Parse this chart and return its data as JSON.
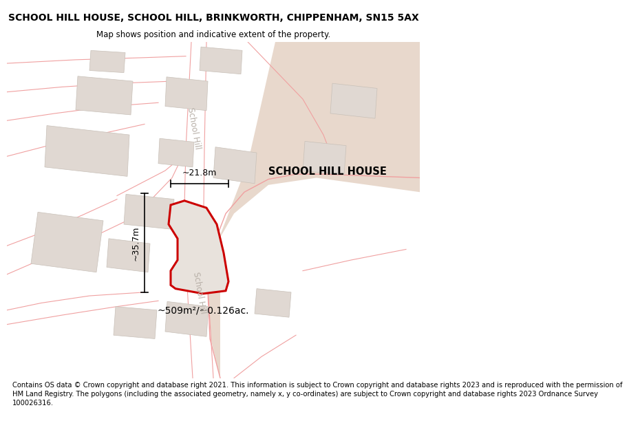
{
  "title": "SCHOOL HILL HOUSE, SCHOOL HILL, BRINKWORTH, CHIPPENHAM, SN15 5AX",
  "subtitle": "Map shows position and indicative extent of the property.",
  "footer_lines": [
    "Contains OS data © Crown copyright and database right 2021. This information is subject to Crown copyright and database rights 2023 and is reproduced with the permission of",
    "HM Land Registry. The polygons (including the associated geometry, namely x, y co-ordinates) are subject to Crown copyright and database rights 2023 Ordnance Survey",
    "100026316."
  ],
  "property_label": "SCHOOL HILL HOUSE",
  "area_label": "~509m²/~0.126ac.",
  "width_label": "~21.8m",
  "height_label": "~35.7m",
  "road_label": "School Hill",
  "map_bg": "#f7f2ef",
  "road_color": "#ffffff",
  "building_fill": "#e0d8d2",
  "building_edge": "#c8c0b8",
  "property_fill": "#e8e2dc",
  "property_edge": "#cc0000",
  "road_lines_color": "#f0a0a0",
  "right_area_color": "#e8d8cc",
  "title_fontsize": 10,
  "subtitle_fontsize": 8.5,
  "footer_fontsize": 7.2
}
